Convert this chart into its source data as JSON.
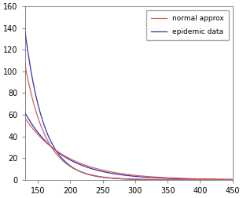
{
  "title": "",
  "xlabel": "",
  "ylabel": "",
  "xlim": [
    130,
    450
  ],
  "ylim": [
    0,
    160
  ],
  "xticks": [
    150,
    200,
    250,
    300,
    350,
    400,
    450
  ],
  "yticks": [
    0,
    20,
    40,
    60,
    80,
    100,
    120,
    140,
    160
  ],
  "legend_labels": [
    "normal approx",
    "epidemic data"
  ],
  "normal_color": "#d06060",
  "epidemic_color": "#3030b0",
  "background_color": "#ffffff",
  "curve_x0": 130,
  "normal_upper": {
    "A": 107,
    "lam": 0.031
  },
  "normal_lower": {
    "A": 57,
    "lam": 0.0155
  },
  "epidemic_upper": {
    "A": 138,
    "lam": 0.034
  },
  "epidemic_lower": {
    "A": 62,
    "lam": 0.0175
  },
  "linewidth": 0.9,
  "tick_labelsize": 7,
  "legend_fontsize": 6.5
}
